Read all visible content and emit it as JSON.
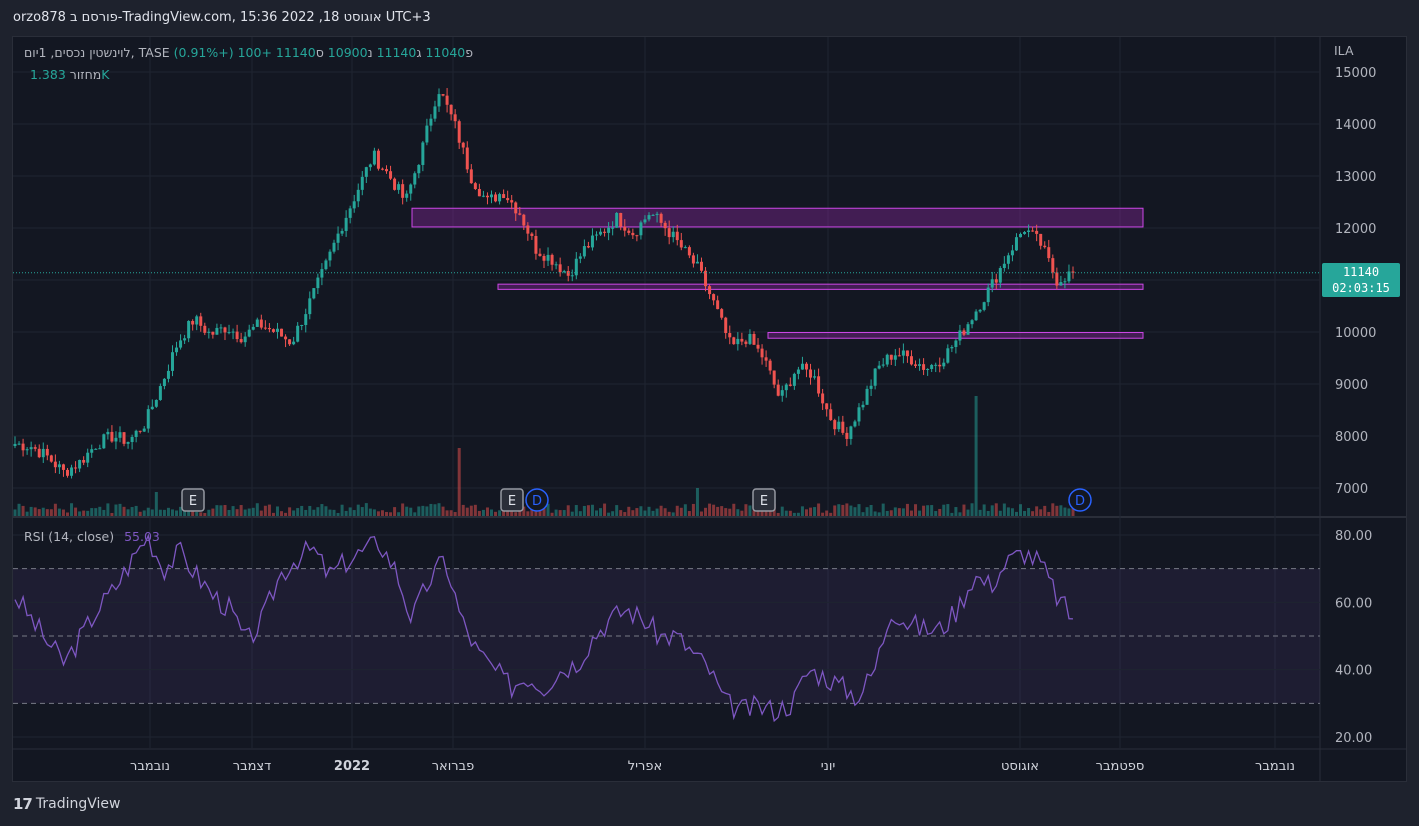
{
  "header": {
    "title": "orzo878 פורסם ב-TradingView.com, 15:36 2022 ,18 אוגוסט UTC+3"
  },
  "legend": {
    "symbol": "לוינשטין נכסים, 1יום, TASE",
    "o_label": "פ",
    "o_value": "11040",
    "h_label": "ג",
    "h_value": "11140",
    "l_label": "נ",
    "l_value": "10900",
    "c_label": "ס",
    "c_value": "11140",
    "change": "+100 (+0.91%)",
    "volume_label": "מחזור",
    "volume_value": "1.383K"
  },
  "rsi": {
    "label": "RSI (14, close)",
    "value": "55.03"
  },
  "price_badge": {
    "price": "11140",
    "countdown": "02:03:15"
  },
  "currency": "ILA",
  "brand": {
    "logo": "17",
    "name": "TradingView"
  },
  "colors": {
    "up": "#26a69a",
    "down": "#ef5350",
    "zone": "#9c27b0",
    "rsi": "#7e57c2",
    "bg": "#131722"
  },
  "chart_data": {
    "type": "candlestick",
    "price_axis": {
      "ticks": [
        15000,
        14000,
        13000,
        12000,
        11000,
        10000,
        9000,
        8000,
        7000
      ]
    },
    "rsi_axis": {
      "ticks": [
        "80.00",
        "60.00",
        "40.00",
        "20.00"
      ],
      "bands": [
        30,
        50,
        70
      ],
      "ylim": [
        20,
        80
      ]
    },
    "time_axis": [
      "נובמבר",
      "דצמבר",
      "2022",
      "פברואר",
      "אפריל",
      "יוני",
      "אוגוסט",
      "ספטמבר",
      "נובמבר"
    ],
    "current_price": 11140,
    "zones": [
      {
        "low": 12020,
        "high": 12380
      },
      {
        "low": 10820,
        "high": 10920
      },
      {
        "low": 9880,
        "high": 9990
      }
    ],
    "events": [
      "E",
      "E",
      "D",
      "E",
      "D"
    ],
    "price_path": [
      7850,
      7800,
      7600,
      7300,
      7500,
      7850,
      8000,
      7900,
      8250,
      9000,
      9800,
      10250,
      9950,
      10100,
      9900,
      10150,
      10000,
      9800,
      10500,
      11200,
      12000,
      12700,
      13400,
      13000,
      12500,
      13500,
      14700,
      14000,
      13000,
      12500,
      12700,
      12300,
      11600,
      11400,
      11100,
      11600,
      11900,
      12200,
      11900,
      12300,
      12000,
      11600,
      11200,
      10500,
      9700,
      9900,
      9500,
      8700,
      9300,
      9200,
      8400,
      8000,
      8600,
      9300,
      9600,
      9500,
      9300,
      9500,
      9900,
      10400,
      10900,
      11500,
      12000,
      11700,
      11000,
      11140
    ],
    "rsi_path": [
      62,
      55,
      48,
      42,
      50,
      58,
      64,
      72,
      80,
      70,
      75,
      68,
      62,
      58,
      48,
      55,
      68,
      73,
      76,
      68,
      72,
      75,
      78,
      70,
      55,
      66,
      73,
      55,
      45,
      40,
      35,
      38,
      35,
      40,
      42,
      50,
      55,
      58,
      55,
      50,
      50,
      45,
      40,
      30,
      28,
      29,
      28,
      30,
      40,
      38,
      35,
      32,
      40,
      58,
      54,
      52,
      52,
      58,
      68,
      65,
      72,
      75,
      72,
      62,
      55
    ]
  }
}
